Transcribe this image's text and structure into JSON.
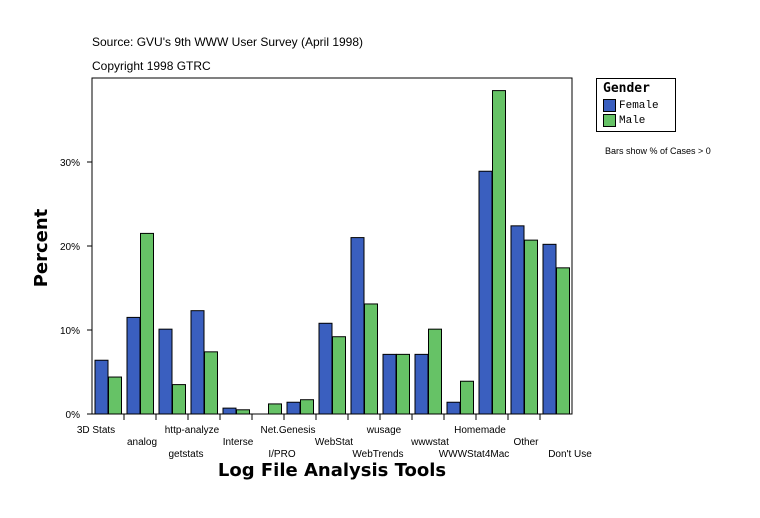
{
  "chart_data": {
    "type": "bar",
    "source": "Source: GVU's 9th WWW User Survey (April 1998)",
    "copyright": "Copyright 1998 GTRC",
    "xlabel": "Log File Analysis Tools",
    "ylabel": "Percent",
    "ylim": [
      0,
      40
    ],
    "yticks": [
      "0%",
      "10%",
      "20%",
      "30%"
    ],
    "grid": false,
    "legend_title": "Gender",
    "legend_placement": "top-right",
    "note": "Bars show % of Cases > 0",
    "categories": [
      "3D Stats",
      "analog",
      "getstats",
      "http-analyze",
      "Interse",
      "I/PRO",
      "Net.Genesis",
      "WebStat",
      "WebTrends",
      "wusage",
      "wwwstat",
      "WWWStat4Mac",
      "Homemade",
      "Other",
      "Don't Use"
    ],
    "series": [
      {
        "name": "Female",
        "color": "#3a5fbf",
        "values": [
          6.4,
          11.5,
          10.1,
          12.3,
          0.7,
          0,
          1.4,
          10.8,
          21.0,
          7.1,
          7.1,
          1.4,
          28.9,
          22.4,
          20.2
        ]
      },
      {
        "name": "Male",
        "color": "#66c266",
        "values": [
          4.4,
          21.5,
          3.5,
          7.4,
          0.5,
          1.2,
          1.7,
          9.2,
          13.1,
          7.1,
          10.1,
          3.9,
          38.5,
          20.7,
          17.4
        ]
      }
    ]
  }
}
